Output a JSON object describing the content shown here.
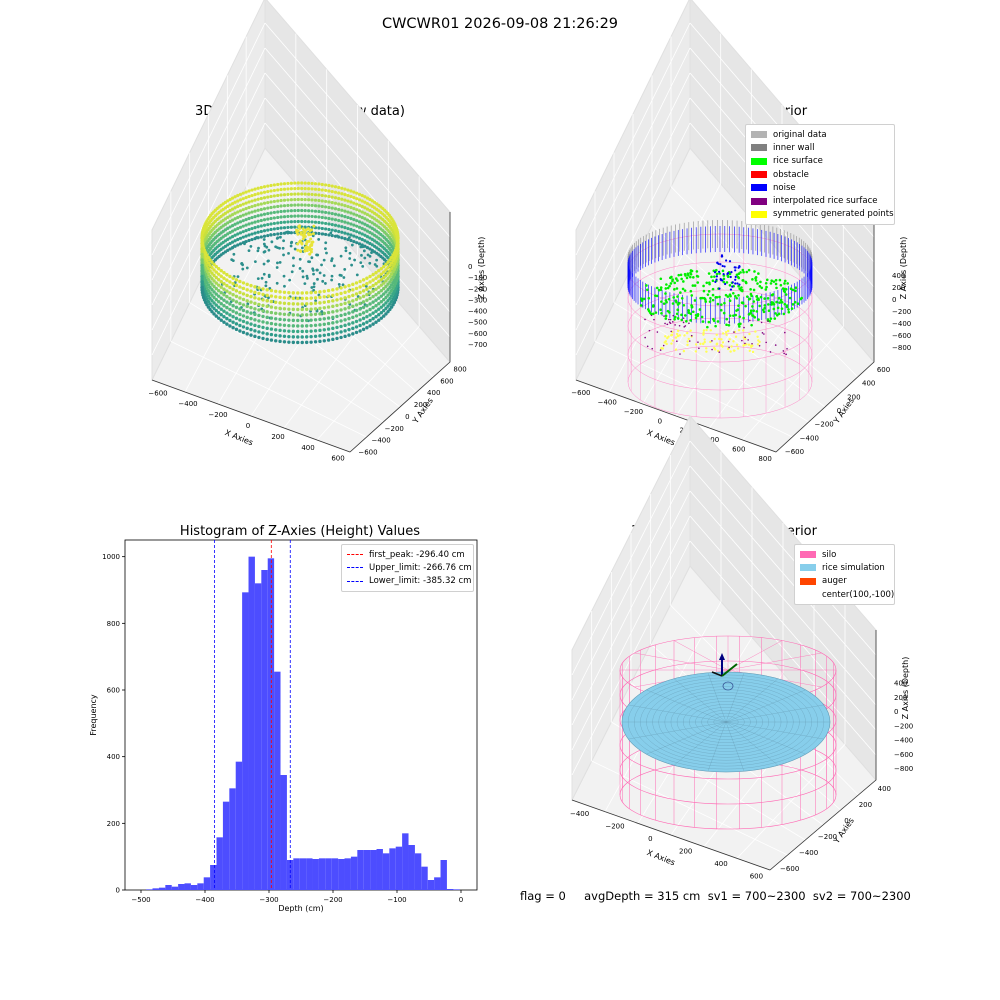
{
  "figure": {
    "title": "CWCWR01 2026-09-08 21:26:29",
    "footer": "flag = 0     avgDepth = 315 cm  sv1 = 700~2300  sv2 = 700~2300"
  },
  "panels": {
    "raw": {
      "title": "3D Plot of Silo Interior(row data)",
      "x_ticks": [
        "−600",
        "−400",
        "−200",
        "0",
        "200",
        "400",
        "600"
      ],
      "y_ticks": [
        "−600",
        "−400",
        "−200",
        "0",
        "200",
        "400",
        "600",
        "800"
      ],
      "z_ticks": [
        "0",
        "−100",
        "−200",
        "−300",
        "−400",
        "−500",
        "−600",
        "−700"
      ],
      "xlabel": "X Axies",
      "ylabel": "Y Axies",
      "zlabel": "Z Axies (Depth)"
    },
    "classify": {
      "title": "3D classify of Silo Interior",
      "x_ticks": [
        "−600",
        "−400",
        "−200",
        "0",
        "200",
        "400",
        "600",
        "800"
      ],
      "y_ticks": [
        "−600",
        "−400",
        "−200",
        "0",
        "200",
        "400",
        "600"
      ],
      "z_ticks": [
        "400",
        "200",
        "0",
        "−200",
        "−400",
        "−600",
        "−800"
      ],
      "xlabel": "X Axies",
      "ylabel": "Y Axies",
      "zlabel": "Z Axies (Depth)",
      "legend": [
        {
          "label": "original data",
          "color": "#b3b3b3"
        },
        {
          "label": "inner wall",
          "color": "#808080"
        },
        {
          "label": "rice surface",
          "color": "#00ff00"
        },
        {
          "label": "obstacle",
          "color": "#ff0000"
        },
        {
          "label": "noise",
          "color": "#0000ff"
        },
        {
          "label": "interpolated rice surface",
          "color": "#800080"
        },
        {
          "label": "symmetric generated points",
          "color": "#ffff00"
        }
      ]
    },
    "simulation": {
      "title": "3D simulation of Silo Interior",
      "x_ticks": [
        "−400",
        "−200",
        "0",
        "200",
        "400",
        "600"
      ],
      "y_ticks": [
        "−600",
        "−400",
        "−200",
        "0",
        "200",
        "400"
      ],
      "z_ticks": [
        "400",
        "200",
        "0",
        "−200",
        "−400",
        "−600",
        "−800"
      ],
      "xlabel": "X Axies",
      "ylabel": "Y Axies",
      "zlabel": "Z Axies (Depth)",
      "legend": [
        {
          "label": "silo",
          "color": "#ff69b4"
        },
        {
          "label": "rice simulation",
          "color": "#87ceeb"
        },
        {
          "label": "auger",
          "color": "#ff4500"
        },
        {
          "label": "center(100,-100)",
          "color": "#ffffff"
        }
      ]
    }
  },
  "chart_data": [
    {
      "type": "histogram",
      "title": "Histogram of Z-Axies (Height) Values",
      "xlabel": "Depth (cm)",
      "ylabel": "Frequency",
      "xlim": [
        -525,
        25
      ],
      "ylim": [
        0,
        1050
      ],
      "x_ticks": [
        -500,
        -400,
        -300,
        -200,
        -100,
        0
      ],
      "y_ticks": [
        0,
        200,
        400,
        600,
        800,
        1000
      ],
      "bar_color": "#4d4dff",
      "bin_edges": [
        -492,
        -482,
        -472,
        -462,
        -452,
        -442,
        -432,
        -422,
        -412,
        -402,
        -392,
        -382,
        -372,
        -362,
        -352,
        -342,
        -332,
        -322,
        -312,
        -302,
        -292,
        -282,
        -272,
        -262,
        -252,
        -242,
        -232,
        -222,
        -212,
        -202,
        -192,
        -182,
        -172,
        -162,
        -152,
        -142,
        -132,
        -122,
        -112,
        -102,
        -92,
        -82,
        -72,
        -62,
        -52,
        -42,
        -32,
        -22,
        -12,
        -2
      ],
      "counts": [
        2,
        5,
        7,
        15,
        10,
        18,
        20,
        15,
        20,
        38,
        75,
        158,
        265,
        305,
        385,
        893,
        1000,
        920,
        960,
        995,
        655,
        345,
        90,
        95,
        95,
        95,
        93,
        95,
        95,
        95,
        93,
        95,
        100,
        120,
        120,
        120,
        123,
        110,
        125,
        130,
        170,
        135,
        110,
        70,
        30,
        38,
        90,
        3,
        2
      ],
      "vlines": [
        {
          "label": "first_peak: -296.40 cm",
          "value": -296.4,
          "color": "#ff0000"
        },
        {
          "label": "Upper_limit: -266.76 cm",
          "value": -266.76,
          "color": "#0000ff"
        },
        {
          "label": "Lower_limit: -385.32 cm",
          "value": -385.32,
          "color": "#0000ff"
        }
      ]
    }
  ]
}
